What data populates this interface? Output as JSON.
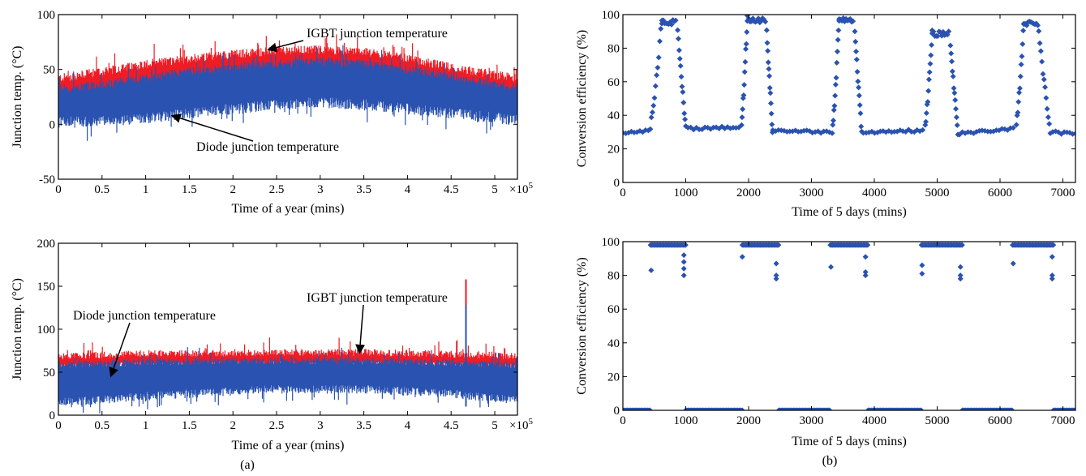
{
  "captions": {
    "a": "(a)",
    "b": "(b)"
  },
  "colors": {
    "igbt": "#ee1c25",
    "diode": "#2a52b0",
    "marker": "#2a52b0",
    "axis": "#000000"
  },
  "chart_data": [
    {
      "id": "a-top",
      "type": "area",
      "xlabel": "Time of a year (mins)",
      "ylabel": "Junction temp. (°C)",
      "x_multiplier_label": "×10",
      "x_multiplier_exp": "5",
      "xlim": [
        0,
        5.26
      ],
      "ylim": [
        -50,
        100
      ],
      "xticks": [
        "0",
        "0.5",
        "1",
        "1.5",
        "2",
        "2.5",
        "3",
        "3.5",
        "4",
        "4.5",
        "5"
      ],
      "yticks": [
        "-50",
        "0",
        "50",
        "100"
      ],
      "annotations": [
        {
          "text": "IGBT junction temperature",
          "target": [
            2.4,
            68
          ]
        },
        {
          "text": "Diode junction temperature",
          "target": [
            1.3,
            8
          ]
        }
      ],
      "series": [
        {
          "name": "IGBT junction temperature",
          "x": [
            0,
            0.5,
            1,
            1.5,
            2,
            2.5,
            3,
            3.5,
            4,
            4.5,
            5,
            5.26
          ],
          "upper": [
            42,
            48,
            55,
            60,
            64,
            67,
            68,
            66,
            60,
            52,
            45,
            42
          ],
          "lower": [
            22,
            24,
            26,
            30,
            33,
            36,
            38,
            37,
            34,
            30,
            26,
            24
          ]
        },
        {
          "name": "Diode junction temperature",
          "x": [
            0,
            0.5,
            1,
            1.5,
            2,
            2.5,
            3,
            3.5,
            4,
            4.5,
            5,
            5.26
          ],
          "upper": [
            32,
            36,
            42,
            48,
            52,
            55,
            57,
            55,
            50,
            43,
            36,
            33
          ],
          "lower": [
            2,
            3,
            5,
            10,
            14,
            18,
            20,
            18,
            14,
            10,
            6,
            4
          ]
        }
      ]
    },
    {
      "id": "a-bottom",
      "type": "area",
      "xlabel": "Time of a year (mins)",
      "ylabel": "Junction temp. (°C)",
      "x_multiplier_label": "×10",
      "x_multiplier_exp": "5",
      "xlim": [
        0,
        5.26
      ],
      "ylim": [
        0,
        200
      ],
      "xticks": [
        "0",
        "0.5",
        "1",
        "1.5",
        "2",
        "2.5",
        "3",
        "3.5",
        "4",
        "4.5",
        "5"
      ],
      "yticks": [
        "0",
        "50",
        "100",
        "150",
        "200"
      ],
      "annotations": [
        {
          "text": "IGBT junction temperature",
          "target": [
            3.45,
            72
          ]
        },
        {
          "text": "Diode junction temperature",
          "target": [
            0.6,
            45
          ]
        }
      ],
      "series": [
        {
          "name": "IGBT junction temperature",
          "x": [
            0,
            0.5,
            1,
            1.5,
            2,
            2.5,
            3,
            3.5,
            4,
            4.5,
            5,
            5.26
          ],
          "upper": [
            68,
            70,
            72,
            72,
            72,
            73,
            73,
            73,
            72,
            71,
            70,
            68
          ],
          "lower": [
            55,
            56,
            57,
            57,
            58,
            58,
            58,
            58,
            57,
            57,
            56,
            55
          ]
        },
        {
          "name": "Diode junction temperature",
          "x": [
            0,
            0.5,
            1,
            1.5,
            2,
            2.5,
            3,
            3.5,
            4,
            4.5,
            5,
            5.26
          ],
          "upper": [
            58,
            60,
            62,
            62,
            63,
            63,
            63,
            63,
            62,
            61,
            60,
            58
          ],
          "lower": [
            15,
            18,
            22,
            25,
            28,
            30,
            30,
            30,
            28,
            25,
            20,
            18
          ]
        }
      ],
      "spike": {
        "x": 4.67,
        "igbt_max": 158,
        "diode_max": 128
      }
    },
    {
      "id": "b-top",
      "type": "scatter",
      "xlabel": "Time of 5 days (mins)",
      "ylabel": "Conversion efficiency (%)",
      "xlim": [
        0,
        7200
      ],
      "ylim": [
        0,
        100
      ],
      "xticks": [
        "0",
        "1000",
        "2000",
        "3000",
        "4000",
        "5000",
        "6000",
        "7000"
      ],
      "yticks": [
        "0",
        "20",
        "40",
        "60",
        "80",
        "100"
      ],
      "baseline": [
        [
          0,
          29
        ],
        [
          450,
          31
        ],
        [
          1000,
          32
        ],
        [
          1900,
          33
        ],
        [
          2400,
          31
        ],
        [
          3300,
          30
        ],
        [
          3800,
          30
        ],
        [
          4800,
          31
        ],
        [
          5300,
          29
        ],
        [
          6200,
          32
        ],
        [
          6800,
          30
        ],
        [
          7200,
          29
        ]
      ],
      "peaks": [
        {
          "rise": [
            420,
            620
          ],
          "plateau": [
            620,
            860
          ],
          "fall": [
            860,
            1000
          ],
          "level": 97
        },
        {
          "rise": [
            1880,
            1980
          ],
          "plateau": [
            1980,
            2280
          ],
          "fall": [
            2280,
            2380
          ],
          "level": 98
        },
        {
          "rise": [
            3330,
            3440
          ],
          "plateau": [
            3440,
            3680
          ],
          "fall": [
            3680,
            3800
          ],
          "level": 98
        },
        {
          "rise": [
            4800,
            4920
          ],
          "plateau": [
            4920,
            5200
          ],
          "fall": [
            5200,
            5330
          ],
          "level": 90
        },
        {
          "rise": [
            6250,
            6380
          ],
          "plateau": [
            6380,
            6600
          ],
          "fall": [
            6600,
            6800
          ],
          "level": 96
        }
      ]
    },
    {
      "id": "b-bottom",
      "type": "scatter",
      "xlabel": "Time of 5 days (mins)",
      "ylabel": "Conversion efficiency (%)",
      "xlim": [
        0,
        7200
      ],
      "ylim": [
        0,
        100
      ],
      "xticks": [
        "0",
        "1000",
        "2000",
        "3000",
        "4000",
        "5000",
        "6000",
        "7000"
      ],
      "yticks": [
        "0",
        "20",
        "40",
        "60",
        "80",
        "100"
      ],
      "zero_segments": [
        [
          0,
          440
        ],
        [
          1000,
          1900
        ],
        [
          2480,
          3300
        ],
        [
          3900,
          4750
        ],
        [
          5400,
          6200
        ],
        [
          6850,
          7200
        ]
      ],
      "high_segments": [
        [
          440,
          1000
        ],
        [
          1900,
          2480
        ],
        [
          3300,
          3900
        ],
        [
          4750,
          5400
        ],
        [
          6200,
          6850
        ]
      ],
      "high_level": 98,
      "dips": [
        {
          "x": 450,
          "ys": [
            83
          ]
        },
        {
          "x": 970,
          "ys": [
            92,
            88,
            84,
            80
          ]
        },
        {
          "x": 1900,
          "ys": [
            91
          ]
        },
        {
          "x": 2440,
          "ys": [
            87,
            80,
            78
          ]
        },
        {
          "x": 3310,
          "ys": [
            85
          ]
        },
        {
          "x": 3860,
          "ys": [
            91,
            82,
            80
          ]
        },
        {
          "x": 4760,
          "ys": [
            86,
            81
          ]
        },
        {
          "x": 5370,
          "ys": [
            85,
            80,
            78
          ]
        },
        {
          "x": 6210,
          "ys": [
            87
          ]
        },
        {
          "x": 6830,
          "ys": [
            91,
            80,
            78
          ]
        }
      ]
    }
  ]
}
